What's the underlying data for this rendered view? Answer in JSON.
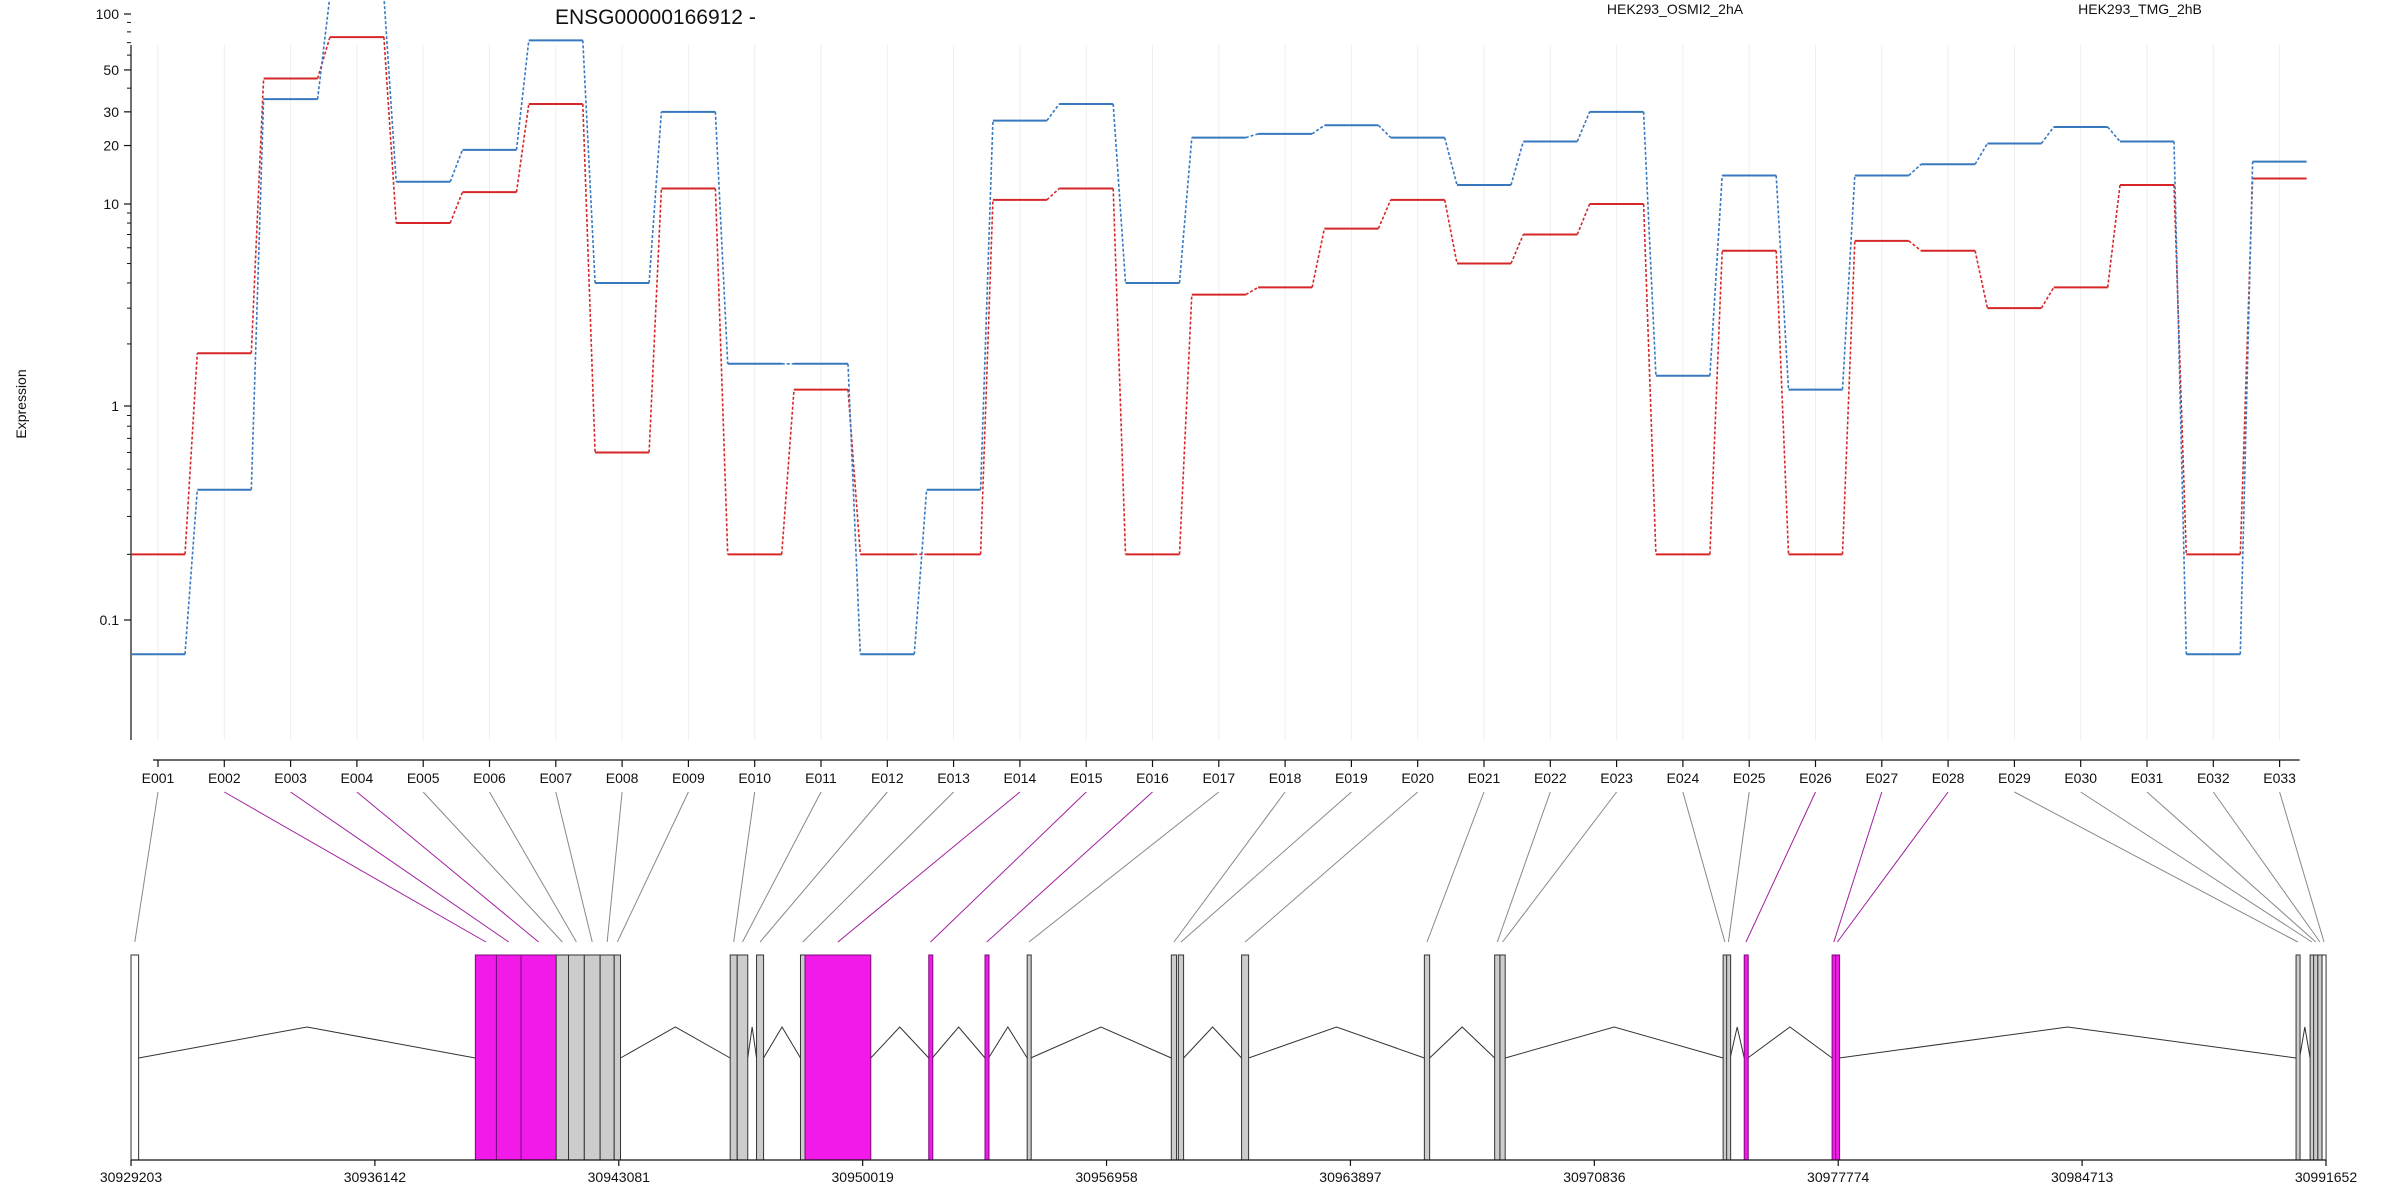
{
  "chart_data": {
    "type": "line",
    "title": "ENSG00000166912 -",
    "ylabel": "Expression",
    "y_scale": "log",
    "y_ticks": [
      0.1,
      1,
      10,
      20,
      30,
      50,
      100
    ],
    "grid": "vertical",
    "legend_position": "top",
    "categories": [
      "E001",
      "E002",
      "E003",
      "E004",
      "E005",
      "E006",
      "E007",
      "E008",
      "E009",
      "E010",
      "E011",
      "E012",
      "E013",
      "E014",
      "E015",
      "E016",
      "E017",
      "E018",
      "E019",
      "E020",
      "E021",
      "E022",
      "E023",
      "E024",
      "E025",
      "E026",
      "E027",
      "E028",
      "E029",
      "E030",
      "E031",
      "E032",
      "E033"
    ],
    "series": [
      {
        "name": "HEK293_OSMI2_2hA",
        "color": "#d62728",
        "values": [
          0.2,
          1.8,
          45,
          75,
          8,
          11.5,
          33,
          0.6,
          12,
          0.2,
          1.2,
          0.2,
          0.2,
          10.5,
          12,
          0.2,
          3.5,
          3.8,
          7.5,
          10.5,
          5,
          7,
          10,
          0.2,
          5.8,
          0.2,
          6.5,
          5.8,
          3,
          3.8,
          12.5,
          0.2,
          13.5
        ]
      },
      {
        "name": "HEK293_TMG_2hB",
        "color": "#3778bf",
        "values": [
          0.07,
          0.4,
          35,
          125,
          13,
          19,
          72,
          4,
          30,
          1.6,
          1.6,
          0.07,
          0.4,
          27,
          33,
          4,
          22,
          23,
          25.5,
          22,
          12.5,
          21,
          30,
          1.4,
          14,
          1.2,
          14,
          16,
          20.5,
          25,
          21,
          0.07,
          16.5
        ]
      }
    ],
    "genomic_axis": {
      "ticks": [
        "30929203",
        "30936142",
        "30943081",
        "30950019",
        "30956958",
        "30963897",
        "30970836",
        "30977774",
        "30984713",
        "30991652"
      ],
      "tick_values": [
        30929203,
        30936142,
        30943081,
        30950019,
        30956958,
        30963897,
        30970836,
        30977774,
        30984713,
        30991652
      ]
    },
    "exons": [
      {
        "id": "E001",
        "start": 30929203,
        "end": 30929420,
        "fill": "#ffffff",
        "highlight": false
      },
      {
        "id": "E002",
        "start": 30939000,
        "end": 30939600,
        "fill": "#f21ae8",
        "highlight": true
      },
      {
        "id": "E003",
        "start": 30939600,
        "end": 30940300,
        "fill": "#f21ae8",
        "highlight": true
      },
      {
        "id": "E004",
        "start": 30940300,
        "end": 30941300,
        "fill": "#f21ae8",
        "highlight": true
      },
      {
        "id": "E005",
        "start": 30941300,
        "end": 30941650,
        "fill": "#cccccc",
        "highlight": false
      },
      {
        "id": "E006",
        "start": 30941650,
        "end": 30942100,
        "fill": "#cccccc",
        "highlight": false
      },
      {
        "id": "E007",
        "start": 30942100,
        "end": 30942550,
        "fill": "#cccccc",
        "highlight": false
      },
      {
        "id": "E008",
        "start": 30942550,
        "end": 30942950,
        "fill": "#cccccc",
        "highlight": false
      },
      {
        "id": "E009",
        "start": 30942950,
        "end": 30943130,
        "fill": "#cccccc",
        "highlight": false
      },
      {
        "id": "E010",
        "start": 30946250,
        "end": 30946450,
        "fill": "#cccccc",
        "highlight": false
      },
      {
        "id": "E011",
        "start": 30946450,
        "end": 30946750,
        "fill": "#cccccc",
        "highlight": false
      },
      {
        "id": "E012",
        "start": 30947000,
        "end": 30947200,
        "fill": "#cccccc",
        "highlight": false
      },
      {
        "id": "E013",
        "start": 30948250,
        "end": 30948380,
        "fill": "#cccccc",
        "highlight": false
      },
      {
        "id": "E014",
        "start": 30948380,
        "end": 30950250,
        "fill": "#f21ae8",
        "highlight": true
      },
      {
        "id": "E015",
        "start": 30951900,
        "end": 30952000,
        "fill": "#f21ae8",
        "highlight": true
      },
      {
        "id": "E016",
        "start": 30953500,
        "end": 30953600,
        "fill": "#f21ae8",
        "highlight": true
      },
      {
        "id": "E017",
        "start": 30954700,
        "end": 30954800,
        "fill": "#cccccc",
        "highlight": false
      },
      {
        "id": "E018",
        "start": 30958800,
        "end": 30958950,
        "fill": "#cccccc",
        "highlight": false
      },
      {
        "id": "E019",
        "start": 30959000,
        "end": 30959150,
        "fill": "#cccccc",
        "highlight": false
      },
      {
        "id": "E020",
        "start": 30960800,
        "end": 30961000,
        "fill": "#cccccc",
        "highlight": false
      },
      {
        "id": "E021",
        "start": 30966000,
        "end": 30966150,
        "fill": "#cccccc",
        "highlight": false
      },
      {
        "id": "E022",
        "start": 30968000,
        "end": 30968150,
        "fill": "#cccccc",
        "highlight": false
      },
      {
        "id": "E023",
        "start": 30968150,
        "end": 30968300,
        "fill": "#cccccc",
        "highlight": false
      },
      {
        "id": "E024",
        "start": 30974500,
        "end": 30974600,
        "fill": "#cccccc",
        "highlight": false
      },
      {
        "id": "E025",
        "start": 30974600,
        "end": 30974700,
        "fill": "#cccccc",
        "highlight": false
      },
      {
        "id": "E026",
        "start": 30975100,
        "end": 30975200,
        "fill": "#f21ae8",
        "highlight": true
      },
      {
        "id": "E027",
        "start": 30977600,
        "end": 30977700,
        "fill": "#f21ae8",
        "highlight": true
      },
      {
        "id": "E028",
        "start": 30977700,
        "end": 30977800,
        "fill": "#f21ae8",
        "highlight": true
      },
      {
        "id": "E029",
        "start": 30990800,
        "end": 30990900,
        "fill": "#cccccc",
        "highlight": false
      },
      {
        "id": "E030",
        "start": 30991200,
        "end": 30991300,
        "fill": "#cccccc",
        "highlight": false
      },
      {
        "id": "E031",
        "start": 30991300,
        "end": 30991420,
        "fill": "#cccccc",
        "highlight": false
      },
      {
        "id": "E032",
        "start": 30991420,
        "end": 30991540,
        "fill": "#cccccc",
        "highlight": false
      },
      {
        "id": "E033",
        "start": 30991540,
        "end": 30991652,
        "fill": "#ffffff",
        "highlight": false
      }
    ]
  }
}
